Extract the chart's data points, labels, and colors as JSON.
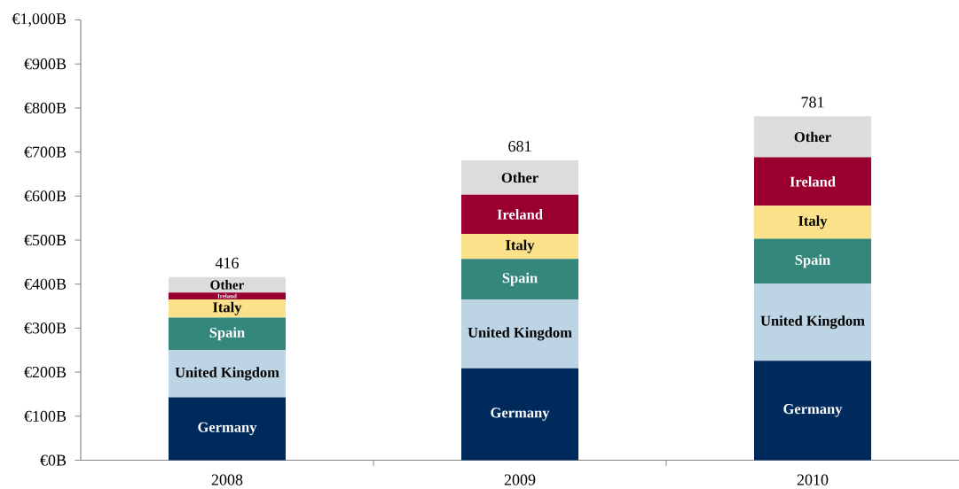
{
  "chart_data": {
    "type": "bar",
    "stacked": true,
    "categories": [
      "2008",
      "2009",
      "2010"
    ],
    "series": [
      {
        "name": "Germany",
        "color": "#002a5c",
        "values": [
          143,
          209,
          226
        ]
      },
      {
        "name": "United Kingdom",
        "color": "#bcd4e4",
        "values": [
          107,
          156,
          175
        ]
      },
      {
        "name": "Spain",
        "color": "#35877c",
        "values": [
          74,
          92,
          102
        ]
      },
      {
        "name": "Italy",
        "color": "#fbe28a",
        "values": [
          41,
          57,
          75
        ]
      },
      {
        "name": "Ireland",
        "color": "#990030",
        "values": [
          16,
          89,
          110
        ]
      },
      {
        "name": "Other",
        "color": "#dcdcdc",
        "values": [
          35,
          78,
          93
        ]
      }
    ],
    "ylim": [
      0,
      1000
    ],
    "yticks": [
      {
        "value": 0,
        "label": "€0B"
      },
      {
        "value": 100,
        "label": "€100B"
      },
      {
        "value": 200,
        "label": "€200B"
      },
      {
        "value": 300,
        "label": "€300B"
      },
      {
        "value": 400,
        "label": "€400B"
      },
      {
        "value": 500,
        "label": "€500B"
      },
      {
        "value": 600,
        "label": "€600B"
      },
      {
        "value": 700,
        "label": "€700B"
      },
      {
        "value": 800,
        "label": "€800B"
      },
      {
        "value": 900,
        "label": "€900B"
      },
      {
        "value": 1000,
        "label": "€1,000B"
      }
    ],
    "totals": [
      "416",
      "681",
      "781"
    ]
  }
}
